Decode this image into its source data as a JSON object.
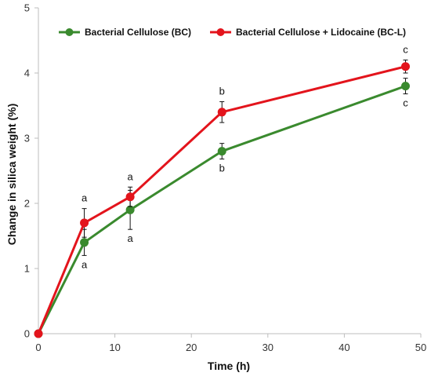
{
  "chart_data": {
    "type": "line",
    "title": "",
    "xlabel": "Time (h)",
    "ylabel": "Change in silica weight (%)",
    "xlim": [
      0,
      50
    ],
    "ylim": [
      0,
      5
    ],
    "x_ticks": [
      0,
      10,
      20,
      30,
      40,
      50
    ],
    "y_ticks": [
      0,
      1,
      2,
      3,
      4,
      5
    ],
    "grid": false,
    "legend_position": "top",
    "series": [
      {
        "name": "Bacterial Cellulose (BC)",
        "color": "#3a8a2e",
        "points": [
          {
            "x": 0,
            "y": 0,
            "err": 0,
            "label": ""
          },
          {
            "x": 6,
            "y": 1.4,
            "err": 0.2,
            "label": "a"
          },
          {
            "x": 12,
            "y": 1.9,
            "err": 0.3,
            "label": "a"
          },
          {
            "x": 24,
            "y": 2.8,
            "err": 0.12,
            "label": "b"
          },
          {
            "x": 48,
            "y": 3.8,
            "err": 0.12,
            "label": "c"
          }
        ]
      },
      {
        "name": "Bacterial Cellulose + Lidocaine (BC-L)",
        "color": "#e3141c",
        "points": [
          {
            "x": 0,
            "y": 0,
            "err": 0,
            "label": ""
          },
          {
            "x": 6,
            "y": 1.7,
            "err": 0.22,
            "label": "a"
          },
          {
            "x": 12,
            "y": 2.1,
            "err": 0.15,
            "label": "a"
          },
          {
            "x": 24,
            "y": 3.4,
            "err": 0.16,
            "label": "b"
          },
          {
            "x": 48,
            "y": 4.1,
            "err": 0.1,
            "label": "c"
          }
        ]
      }
    ]
  }
}
